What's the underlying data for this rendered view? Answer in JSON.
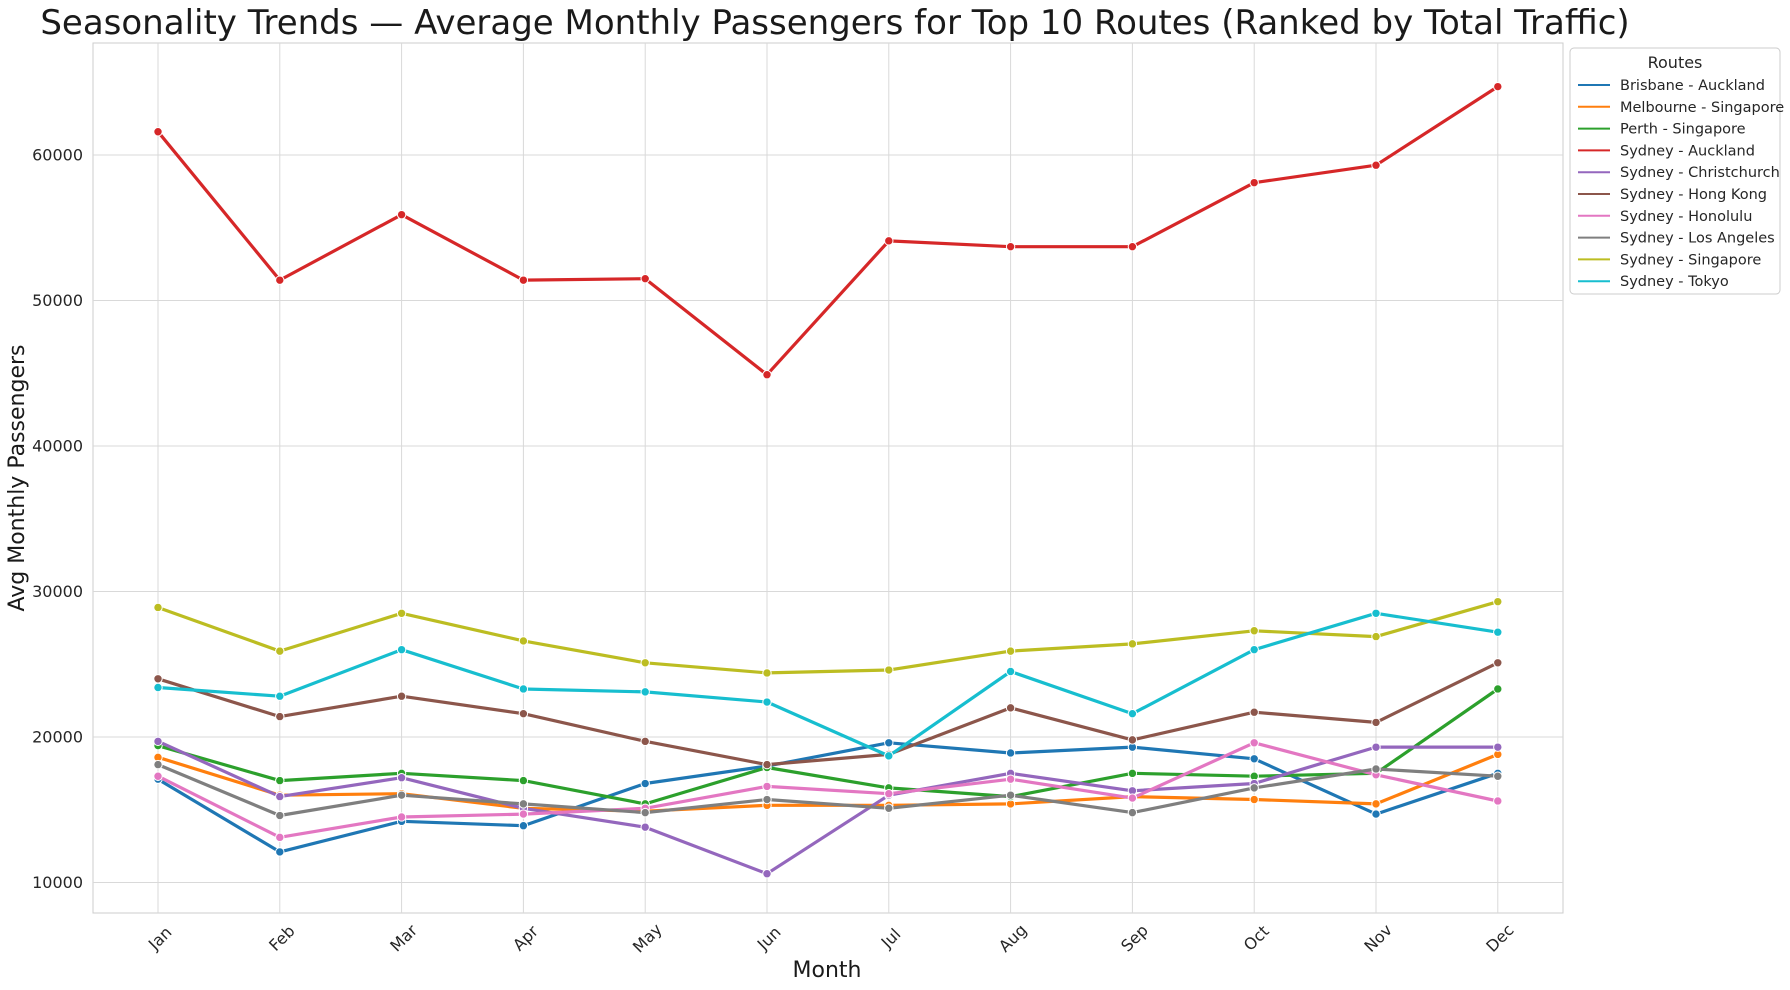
{
  "chart_data": {
    "type": "line",
    "title": "Seasonality Trends — Average Monthly Passengers for Top 10 Routes (Ranked by Total Traffic)",
    "xlabel": "Month",
    "ylabel": "Avg Monthly Passengers",
    "categories": [
      "Jan",
      "Feb",
      "Mar",
      "Apr",
      "May",
      "Jun",
      "Jul",
      "Aug",
      "Sep",
      "Oct",
      "Nov",
      "Dec"
    ],
    "ylim": [
      7900,
      67700
    ],
    "yticks": [
      10000,
      20000,
      30000,
      40000,
      50000,
      60000
    ],
    "grid": true,
    "legend_title": "Routes",
    "legend_position": "outside-top-right",
    "series": [
      {
        "name": "Brisbane - Auckland",
        "color": "#1f77b4",
        "values": [
          17100,
          12100,
          14200,
          13900,
          16800,
          18000,
          19600,
          18900,
          19300,
          18500,
          14700,
          17500
        ]
      },
      {
        "name": "Melbourne - Singapore",
        "color": "#ff7f0e",
        "values": [
          18600,
          16000,
          16100,
          15100,
          14900,
          15300,
          15300,
          15400,
          15900,
          15700,
          15400,
          18800
        ]
      },
      {
        "name": "Perth - Singapore",
        "color": "#2ca02c",
        "values": [
          19400,
          17000,
          17500,
          17000,
          15400,
          17900,
          16500,
          15900,
          17500,
          17300,
          17500,
          23300
        ]
      },
      {
        "name": "Sydney - Auckland",
        "color": "#d62728",
        "values": [
          61600,
          51400,
          55900,
          51400,
          51500,
          44900,
          54100,
          53700,
          53700,
          58100,
          59300,
          64700
        ]
      },
      {
        "name": "Sydney - Christchurch",
        "color": "#9467bd",
        "values": [
          19700,
          15900,
          17200,
          15100,
          13800,
          10600,
          16000,
          17500,
          16300,
          16800,
          19300,
          19300
        ]
      },
      {
        "name": "Sydney - Hong Kong",
        "color": "#8c564b",
        "values": [
          24000,
          21400,
          22800,
          21600,
          19700,
          18100,
          18800,
          22000,
          19800,
          21700,
          21000,
          25100
        ]
      },
      {
        "name": "Sydney - Honolulu",
        "color": "#e377c2",
        "values": [
          17300,
          13100,
          14500,
          14700,
          15100,
          16600,
          16100,
          17100,
          15800,
          19600,
          17400,
          15600
        ]
      },
      {
        "name": "Sydney - Los Angeles",
        "color": "#7f7f7f",
        "values": [
          18100,
          14600,
          16000,
          15400,
          14800,
          15700,
          15100,
          16000,
          14800,
          16500,
          17800,
          17300
        ]
      },
      {
        "name": "Sydney - Singapore",
        "color": "#bcbd22",
        "values": [
          28900,
          25900,
          28500,
          26600,
          25100,
          24400,
          24600,
          25900,
          26400,
          27300,
          26900,
          29300
        ]
      },
      {
        "name": "Sydney - Tokyo",
        "color": "#17becf",
        "values": [
          23400,
          22800,
          26000,
          23300,
          23100,
          22400,
          18700,
          24500,
          21600,
          26000,
          28500,
          27200
        ]
      }
    ]
  }
}
